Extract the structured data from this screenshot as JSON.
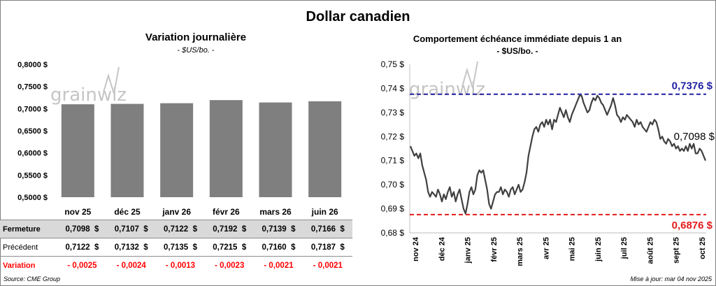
{
  "title": "Dollar canadien",
  "left_panel": {
    "title": "Variation  journalière",
    "subtitle": "- $US/bo. -"
  },
  "right_panel": {
    "title": "Comportement échéance immédiate depuis 1 an",
    "subtitle": "- $US/bo. -"
  },
  "watermark": "grainwiz",
  "colors": {
    "bar": "#7f7f7f",
    "line": "#404040",
    "high": "#1f1fa3",
    "low": "#e31b1b",
    "table_band": "#d9d9d9",
    "variation": "#ff0000"
  },
  "table": {
    "rows": [
      {
        "label": "Fermeture",
        "values": [
          "0,7098",
          "0,7107",
          "0,7122",
          "0,7192",
          "0,7139",
          "0,7166"
        ]
      },
      {
        "label": "Précédent",
        "values": [
          "0,7122",
          "0,7132",
          "0,7135",
          "0,7215",
          "0,7160",
          "0,7187"
        ]
      },
      {
        "label": "Variation",
        "values": [
          "- 0,0025",
          "- 0,0024",
          "- 0,0013",
          "- 0,0023",
          "- 0,0021",
          "- 0,0021"
        ]
      }
    ],
    "currency": "$"
  },
  "footer": {
    "source": "Source: CME Group",
    "updated": "Mise à jour: mar 04 nov 2025"
  },
  "chart_data": [
    {
      "type": "bar",
      "categories": [
        "nov 25",
        "déc 25",
        "janv 26",
        "févr 26",
        "mars 26",
        "juin 26"
      ],
      "values": [
        0.7098,
        0.7107,
        0.7122,
        0.7192,
        0.7139,
        0.7166
      ],
      "ylim": [
        0.5,
        0.8
      ],
      "yticks": [
        0.5,
        0.55,
        0.6,
        0.65,
        0.7,
        0.75,
        0.8
      ],
      "ytick_labels": [
        "0,5000 $",
        "0,5500 $",
        "0,6000 $",
        "0,6500 $",
        "0,7000 $",
        "0,7500 $",
        "0,8000 $"
      ],
      "grid": false,
      "background": "#ffffff"
    },
    {
      "type": "line",
      "x_labels": [
        "nov 24",
        "déc 24",
        "janv 25",
        "févr 25",
        "mars 25",
        "avr 25",
        "mai 25",
        "juin 25",
        "juil 25",
        "août 25",
        "sept 25",
        "oct 25"
      ],
      "values": [
        0.716,
        0.714,
        0.712,
        0.713,
        0.711,
        0.713,
        0.708,
        0.705,
        0.702,
        0.697,
        0.695,
        0.697,
        0.696,
        0.695,
        0.698,
        0.696,
        0.693,
        0.696,
        0.694,
        0.697,
        0.699,
        0.695,
        0.697,
        0.693,
        0.696,
        0.698,
        0.694,
        0.69,
        0.688,
        0.692,
        0.697,
        0.699,
        0.696,
        0.698,
        0.704,
        0.706,
        0.705,
        0.706,
        0.702,
        0.698,
        0.692,
        0.69,
        0.693,
        0.696,
        0.697,
        0.697,
        0.699,
        0.696,
        0.698,
        0.697,
        0.695,
        0.698,
        0.699,
        0.696,
        0.698,
        0.7,
        0.697,
        0.698,
        0.701,
        0.705,
        0.712,
        0.716,
        0.72,
        0.723,
        0.724,
        0.722,
        0.725,
        0.726,
        0.724,
        0.727,
        0.725,
        0.727,
        0.723,
        0.727,
        0.726,
        0.729,
        0.732,
        0.73,
        0.728,
        0.731,
        0.728,
        0.726,
        0.729,
        0.731,
        0.733,
        0.735,
        0.737,
        0.737,
        0.734,
        0.732,
        0.73,
        0.731,
        0.734,
        0.736,
        0.735,
        0.737,
        0.736,
        0.734,
        0.733,
        0.731,
        0.729,
        0.731,
        0.733,
        0.736,
        0.733,
        0.729,
        0.728,
        0.726,
        0.728,
        0.727,
        0.729,
        0.728,
        0.727,
        0.726,
        0.724,
        0.727,
        0.725,
        0.726,
        0.724,
        0.723,
        0.722,
        0.724,
        0.726,
        0.725,
        0.727,
        0.726,
        0.723,
        0.719,
        0.72,
        0.718,
        0.717,
        0.719,
        0.718,
        0.716,
        0.717,
        0.715,
        0.716,
        0.714,
        0.715,
        0.714,
        0.716,
        0.714,
        0.717,
        0.715,
        0.717,
        0.713,
        0.713,
        0.715,
        0.714,
        0.712,
        0.71
      ],
      "ylim": [
        0.68,
        0.75
      ],
      "yticks": [
        0.68,
        0.69,
        0.7,
        0.71,
        0.72,
        0.73,
        0.74,
        0.75
      ],
      "ytick_labels": [
        "0,68 $",
        "0,69 $",
        "0,70 $",
        "0,71 $",
        "0,72 $",
        "0,73 $",
        "0,74 $",
        "0,75 $"
      ],
      "high": 0.7376,
      "high_label": "0,7376 $",
      "low": 0.6876,
      "low_label": "0,6876 $",
      "last": 0.7098,
      "last_label": "0,7098 $",
      "grid": false
    }
  ]
}
